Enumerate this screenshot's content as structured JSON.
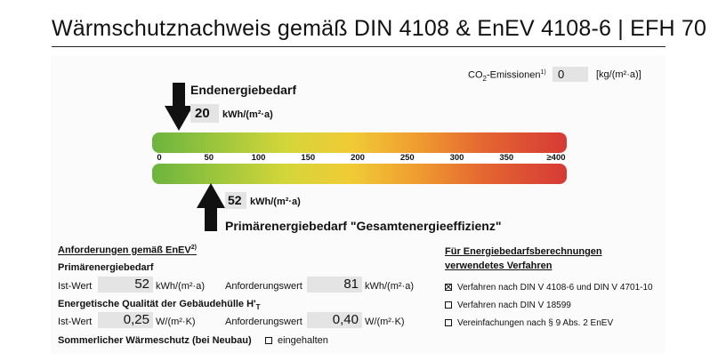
{
  "title": "Wärmschutznachweis gemäß DIN 4108 & EnEV 4108-6 | EFH 70",
  "co2": {
    "label_prefix": "CO",
    "label_sub": "2",
    "label_suffix": "-Emissionen",
    "label_sup": "1)",
    "value": "0",
    "unit": "[kg/(m²·a)]"
  },
  "endenergie": {
    "label": "Endenergiebedarf",
    "value": "20",
    "unit": "kWh/(m²·a)",
    "scale_value": 20
  },
  "scale": {
    "min": 0,
    "max": 400,
    "ticks": [
      "0",
      "50",
      "100",
      "150",
      "200",
      "250",
      "300",
      "350",
      "≥400"
    ]
  },
  "primaer": {
    "label": "Primärenergiebedarf \"Gesamtenergieeffizienz\"",
    "value": "52",
    "unit": "kWh/(m²·a)",
    "scale_value": 52
  },
  "requirements": {
    "heading": "Anforderungen gemäß EnEV",
    "heading_sup": "2)",
    "primary_heading": "Primärenergiebedarf",
    "ist_label": "Ist-Wert",
    "primary_ist": "52",
    "primary_unit": "kWh/(m²·a)",
    "anf_label": "Anforderungswert",
    "primary_anf": "81",
    "envelope_heading_prefix": "Energetische Qualität der Gebäudehülle H'",
    "envelope_heading_sub": "T",
    "envelope_ist": "0,25",
    "envelope_unit": "W/(m²·K)",
    "envelope_anf": "0,40",
    "summer_label": "Sommerlicher Wärmeschutz (bei Neubau)",
    "summer_option": "eingehalten"
  },
  "methods": {
    "heading_line1": "Für Energiebedarfsberechnungen",
    "heading_line2": "verwendetes Verfahren",
    "options": [
      {
        "label": "Verfahren nach DIN V 4108-6 und DIN V 4701-10",
        "checked": true
      },
      {
        "label": "Verfahren nach DIN V 18599",
        "checked": false
      },
      {
        "label": "Vereinfachungen nach § 9 Abs. 2 EnEV",
        "checked": false
      }
    ]
  }
}
